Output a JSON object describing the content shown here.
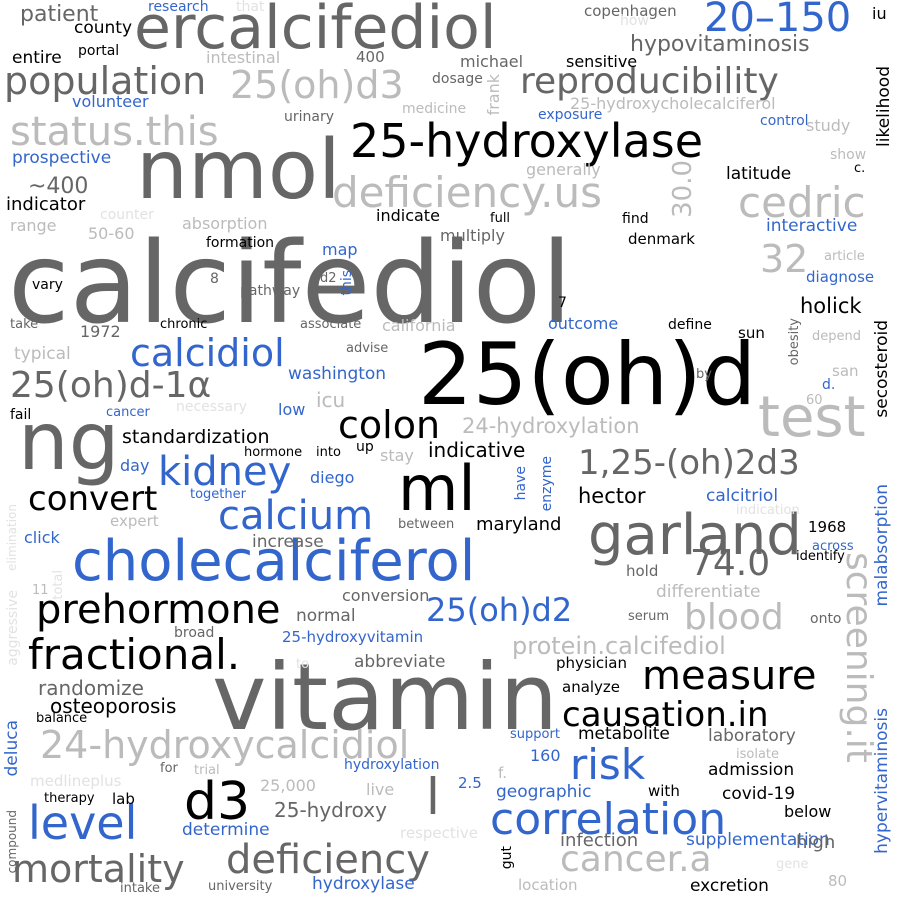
{
  "words": [
    {
      "text": "calcifediol",
      "tone": "d"
    },
    {
      "text": "25(oh)d",
      "tone": "k"
    },
    {
      "text": "vitamin",
      "tone": "d"
    },
    {
      "text": "nmol",
      "tone": "d"
    },
    {
      "text": "ng",
      "tone": "d"
    },
    {
      "text": "ml",
      "tone": "k"
    },
    {
      "text": "ercalcifediol",
      "tone": "d"
    },
    {
      "text": "25-hydroxylase",
      "tone": "k"
    },
    {
      "text": "cholecalciferol",
      "tone": "b"
    },
    {
      "text": "garland",
      "tone": "d"
    },
    {
      "text": "test",
      "tone": "l"
    },
    {
      "text": "d3",
      "tone": "k"
    },
    {
      "text": "l",
      "tone": "d"
    },
    {
      "text": "level",
      "tone": "b"
    },
    {
      "text": "correlation",
      "tone": "b"
    },
    {
      "text": "deficiency",
      "tone": "d"
    },
    {
      "text": "mortality",
      "tone": "d"
    },
    {
      "text": "fractional.",
      "tone": "k"
    },
    {
      "text": "prehormone",
      "tone": "k"
    },
    {
      "text": "reproducibility",
      "tone": "d"
    },
    {
      "text": "population",
      "tone": "d"
    },
    {
      "text": "status.this",
      "tone": "l"
    },
    {
      "text": "deficiency.us",
      "tone": "l"
    },
    {
      "text": "20–150",
      "tone": "b"
    },
    {
      "text": "25(oh)d3",
      "tone": "l"
    },
    {
      "text": "cedric",
      "tone": "l"
    },
    {
      "text": "calcidiol",
      "tone": "b"
    },
    {
      "text": "25(oh)d-1α",
      "tone": "d"
    },
    {
      "text": "kidney",
      "tone": "b"
    },
    {
      "text": "calcium",
      "tone": "b"
    },
    {
      "text": "convert",
      "tone": "k"
    },
    {
      "text": "colon",
      "tone": "k"
    },
    {
      "text": "1,25-(oh)2d3",
      "tone": "d"
    },
    {
      "text": "74.0",
      "tone": "d"
    },
    {
      "text": "measure",
      "tone": "k"
    },
    {
      "text": "causation.in",
      "tone": "k"
    },
    {
      "text": "24-hydroxycalcidiol",
      "tone": "l"
    },
    {
      "text": "risk",
      "tone": "b"
    },
    {
      "text": "cancer.a",
      "tone": "l"
    },
    {
      "text": "screening.it",
      "tone": "l"
    },
    {
      "text": "blood",
      "tone": "l"
    },
    {
      "text": "25(oh)d2",
      "tone": "b"
    },
    {
      "text": "32",
      "tone": "l"
    },
    {
      "text": "30.0",
      "tone": "l"
    },
    {
      "text": "hypovitaminosis",
      "tone": "d"
    },
    {
      "text": "protein.calcifediol",
      "tone": "l"
    },
    {
      "text": "standardization",
      "tone": "k"
    },
    {
      "text": "24-hydroxylation",
      "tone": "l"
    },
    {
      "text": "indicative",
      "tone": "k"
    },
    {
      "text": "hector",
      "tone": "k"
    },
    {
      "text": "maryland",
      "tone": "k"
    },
    {
      "text": "randomize",
      "tone": "d"
    },
    {
      "text": "osteoporosis",
      "tone": "k"
    },
    {
      "text": "25-hydroxy",
      "tone": "d"
    },
    {
      "text": "patient",
      "tone": "d"
    },
    {
      "text": "county",
      "tone": "k"
    },
    {
      "text": "entire",
      "tone": "k"
    },
    {
      "text": "~400",
      "tone": "d"
    },
    {
      "text": "indicator",
      "tone": "k"
    },
    {
      "text": "holick",
      "tone": "k"
    },
    {
      "text": "interactive",
      "tone": "b"
    },
    {
      "text": "latitude",
      "tone": "k"
    },
    {
      "text": "secosteroid",
      "tone": "k"
    },
    {
      "text": "likelihood",
      "tone": "k"
    },
    {
      "text": "hyperVitaminosis",
      "tone": "b"
    },
    {
      "text": "malabsorption",
      "tone": "b"
    },
    {
      "text": "hypervitaminosis",
      "tone": "b"
    },
    {
      "text": "deluca",
      "tone": "b"
    },
    {
      "text": "supplementation",
      "tone": "b"
    },
    {
      "text": "hydroxylase",
      "tone": "b"
    },
    {
      "text": "determine",
      "tone": "b"
    },
    {
      "text": "geographic",
      "tone": "b"
    },
    {
      "text": "calcitriol",
      "tone": "b"
    },
    {
      "text": "washington",
      "tone": "b"
    },
    {
      "text": "prospective",
      "tone": "b"
    },
    {
      "text": "volunteer",
      "tone": "b"
    },
    {
      "text": "infection",
      "tone": "d"
    },
    {
      "text": "excretion",
      "tone": "k"
    },
    {
      "text": "admission",
      "tone": "k"
    },
    {
      "text": "covid-19",
      "tone": "k"
    },
    {
      "text": "laboratory",
      "tone": "d"
    },
    {
      "text": "metabolite",
      "tone": "k"
    },
    {
      "text": "analyze",
      "tone": "k"
    },
    {
      "text": "physician",
      "tone": "k"
    },
    {
      "text": "abbreviate",
      "tone": "d"
    },
    {
      "text": "normal",
      "tone": "d"
    },
    {
      "text": "conversion",
      "tone": "d"
    },
    {
      "text": "increase",
      "tone": "d"
    },
    {
      "text": "differentiate",
      "tone": "l"
    },
    {
      "text": "copenhagen",
      "tone": "d"
    },
    {
      "text": "sensitive",
      "tone": "k"
    },
    {
      "text": "michael",
      "tone": "d"
    },
    {
      "text": "dosage",
      "tone": "d"
    },
    {
      "text": "frank",
      "tone": "l"
    },
    {
      "text": "25-hydroxycholecalciferol",
      "tone": "l"
    },
    {
      "text": "exposure",
      "tone": "b"
    },
    {
      "text": "control",
      "tone": "b"
    },
    {
      "text": "study",
      "tone": "l"
    },
    {
      "text": "show",
      "tone": "l"
    },
    {
      "text": "generally",
      "tone": "l"
    },
    {
      "text": "research",
      "tone": "b"
    },
    {
      "text": "that",
      "tone": "x"
    },
    {
      "text": "portal",
      "tone": "k"
    },
    {
      "text": "intestinal",
      "tone": "l"
    },
    {
      "text": "400",
      "tone": "d"
    },
    {
      "text": "medicine",
      "tone": "l"
    },
    {
      "text": "urinary",
      "tone": "d"
    },
    {
      "text": "how",
      "tone": "x"
    },
    {
      "text": "iu",
      "tone": "k"
    },
    {
      "text": "c.",
      "tone": "k"
    },
    {
      "text": "counter",
      "tone": "x"
    },
    {
      "text": "absorption",
      "tone": "l"
    },
    {
      "text": "range",
      "tone": "l"
    },
    {
      "text": "50-60",
      "tone": "l"
    },
    {
      "text": "formation",
      "tone": "k"
    },
    {
      "text": "indicate",
      "tone": "k"
    },
    {
      "text": "multiply",
      "tone": "d"
    },
    {
      "text": "full",
      "tone": "k"
    },
    {
      "text": "find",
      "tone": "k"
    },
    {
      "text": "denmark",
      "tone": "k"
    },
    {
      "text": "map",
      "tone": "b"
    },
    {
      "text": "this",
      "tone": "b"
    },
    {
      "text": "d2",
      "tone": "d"
    },
    {
      "text": "pathway",
      "tone": "d"
    },
    {
      "text": "vary",
      "tone": "k"
    },
    {
      "text": "8",
      "tone": "d"
    },
    {
      "text": "7",
      "tone": "k"
    },
    {
      "text": "article",
      "tone": "l"
    },
    {
      "text": "diagnose",
      "tone": "b"
    },
    {
      "text": "take",
      "tone": "d"
    },
    {
      "text": "1972",
      "tone": "d"
    },
    {
      "text": "chronic",
      "tone": "k"
    },
    {
      "text": "associate",
      "tone": "d"
    },
    {
      "text": "california",
      "tone": "l"
    },
    {
      "text": "outcome",
      "tone": "b"
    },
    {
      "text": "define",
      "tone": "k"
    },
    {
      "text": "sun",
      "tone": "k"
    },
    {
      "text": "obesity",
      "tone": "d"
    },
    {
      "text": "depend",
      "tone": "l"
    },
    {
      "text": "typical",
      "tone": "l"
    },
    {
      "text": "advise",
      "tone": "d"
    },
    {
      "text": "san",
      "tone": "l"
    },
    {
      "text": "d.",
      "tone": "b"
    },
    {
      "text": "by",
      "tone": "d"
    },
    {
      "text": "60",
      "tone": "l"
    },
    {
      "text": "fail",
      "tone": "k"
    },
    {
      "text": "cancer",
      "tone": "b"
    },
    {
      "text": "necessary",
      "tone": "x"
    },
    {
      "text": "low",
      "tone": "b"
    },
    {
      "text": "icu",
      "tone": "l"
    },
    {
      "text": "hormone",
      "tone": "k"
    },
    {
      "text": "into",
      "tone": "k"
    },
    {
      "text": "up",
      "tone": "k"
    },
    {
      "text": "stay",
      "tone": "l"
    },
    {
      "text": "day",
      "tone": "b"
    },
    {
      "text": "diego",
      "tone": "b"
    },
    {
      "text": "have",
      "tone": "b"
    },
    {
      "text": "enzyme",
      "tone": "b"
    },
    {
      "text": "together",
      "tone": "b"
    },
    {
      "text": "expert",
      "tone": "l"
    },
    {
      "text": "between",
      "tone": "d"
    },
    {
      "text": "indication",
      "tone": "x"
    },
    {
      "text": "1968",
      "tone": "k"
    },
    {
      "text": "across",
      "tone": "b"
    },
    {
      "text": "identify",
      "tone": "k"
    },
    {
      "text": "click",
      "tone": "b"
    },
    {
      "text": "elimination",
      "tone": "x"
    },
    {
      "text": "aggressive",
      "tone": "x"
    },
    {
      "text": "total",
      "tone": "x"
    },
    {
      "text": "11",
      "tone": "l"
    },
    {
      "text": "hold",
      "tone": "d"
    },
    {
      "text": "onto",
      "tone": "d"
    },
    {
      "text": "serum",
      "tone": "d"
    },
    {
      "text": "broad",
      "tone": "d"
    },
    {
      "text": "25-hydroxyvitamin",
      "tone": "b"
    },
    {
      "text": "to",
      "tone": "x"
    },
    {
      "text": "balance",
      "tone": "k"
    },
    {
      "text": "medlineplus",
      "tone": "x"
    },
    {
      "text": "for",
      "tone": "d"
    },
    {
      "text": "trial",
      "tone": "l"
    },
    {
      "text": "support",
      "tone": "b"
    },
    {
      "text": "160",
      "tone": "b"
    },
    {
      "text": "isolate",
      "tone": "l"
    },
    {
      "text": "hydroxylation",
      "tone": "b"
    },
    {
      "text": "f.",
      "tone": "l"
    },
    {
      "text": "25,000",
      "tone": "l"
    },
    {
      "text": "live",
      "tone": "l"
    },
    {
      "text": "2.5",
      "tone": "b"
    },
    {
      "text": "with",
      "tone": "k"
    },
    {
      "text": "below",
      "tone": "k"
    },
    {
      "text": "high",
      "tone": "d"
    },
    {
      "text": "therapy",
      "tone": "k"
    },
    {
      "text": "lab",
      "tone": "k"
    },
    {
      "text": "compound",
      "tone": "d"
    },
    {
      "text": "respective",
      "tone": "x"
    },
    {
      "text": "gut",
      "tone": "k"
    },
    {
      "text": "intake",
      "tone": "d"
    },
    {
      "text": "university",
      "tone": "d"
    },
    {
      "text": "location",
      "tone": "l"
    },
    {
      "text": "gene",
      "tone": "x"
    },
    {
      "text": "80",
      "tone": "l"
    }
  ]
}
